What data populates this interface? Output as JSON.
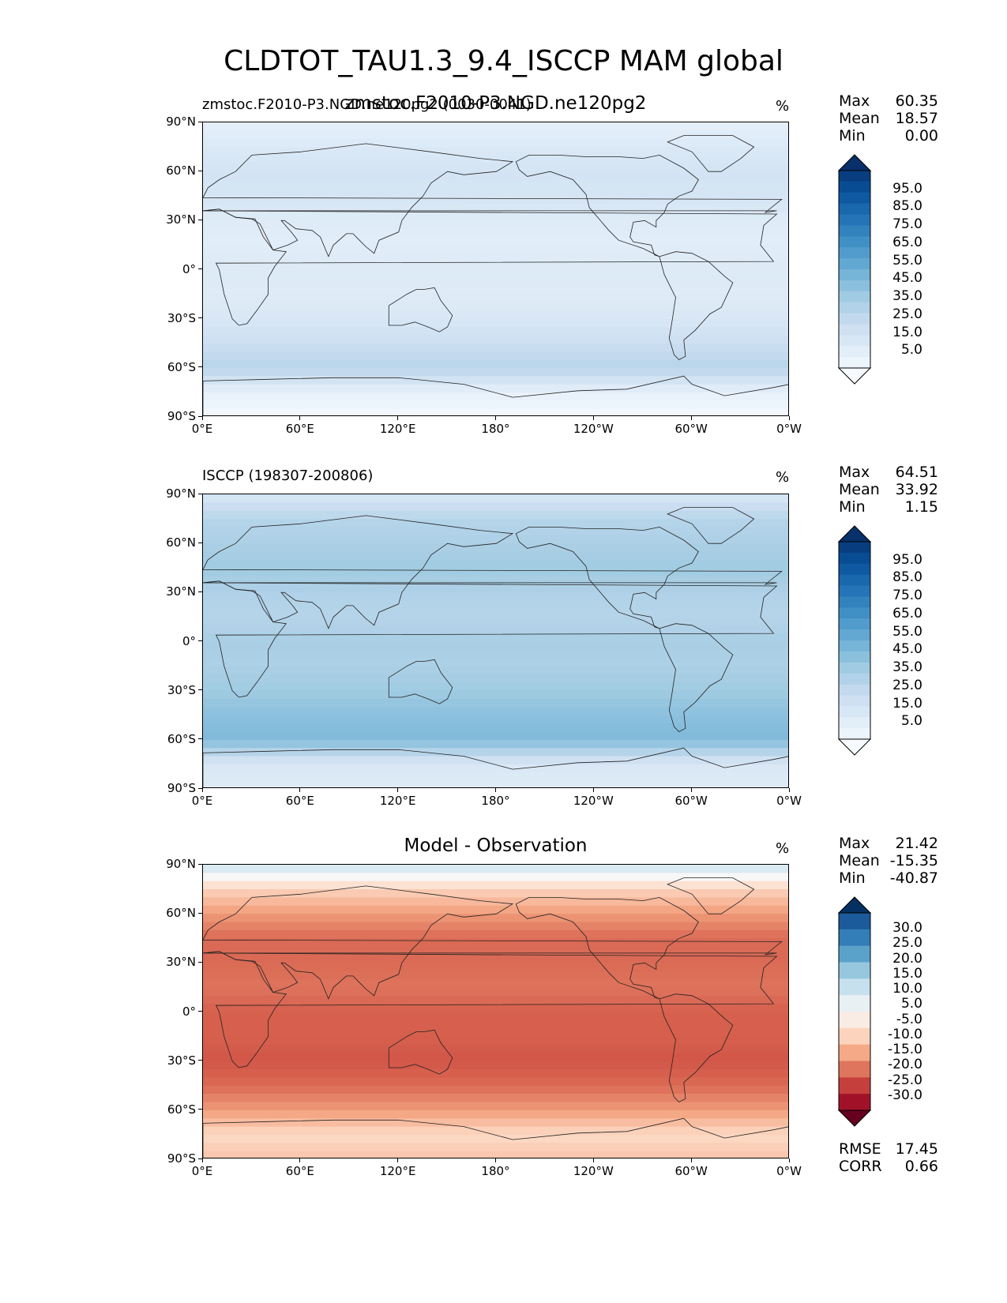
{
  "title": "CLDTOT_TAU1.3_9.4_ISCCP MAM global",
  "x_ticks": [
    "0°E",
    "60°E",
    "120°E",
    "180°",
    "120°W",
    "60°W",
    "0°W"
  ],
  "y_ticks": [
    "90°N",
    "60°N",
    "30°N",
    "0°",
    "30°S",
    "60°S",
    "90°S"
  ],
  "panels": [
    {
      "left_title": "zmstoc.F2010-P3.NGD.ne120pg2 (0030-0041)",
      "center_title": "zmstoc.F2010-P3.NGD.ne120pg2",
      "units": "%",
      "stats": {
        "max_label": "Max",
        "max": "60.35",
        "mean_label": "Mean",
        "mean": "18.57",
        "min_label": "Min",
        "min": "0.00"
      },
      "colorbar_ticks": [
        "95.0",
        "85.0",
        "75.0",
        "65.0",
        "55.0",
        "45.0",
        "35.0",
        "25.0",
        "15.0",
        "5.0"
      ]
    },
    {
      "left_title": "ISCCP (198307-200806)",
      "center_title": "",
      "units": "%",
      "stats": {
        "max_label": "Max",
        "max": "64.51",
        "mean_label": "Mean",
        "mean": "33.92",
        "min_label": "Min",
        "min": "1.15"
      },
      "colorbar_ticks": [
        "95.0",
        "85.0",
        "75.0",
        "65.0",
        "55.0",
        "45.0",
        "35.0",
        "25.0",
        "15.0",
        "5.0"
      ]
    },
    {
      "left_title": "",
      "center_title": "Model - Observation",
      "units": "%",
      "stats": {
        "max_label": "Max",
        "max": "21.42",
        "mean_label": "Mean",
        "mean": "-15.35",
        "min_label": "Min",
        "min": "-40.87"
      },
      "colorbar_ticks": [
        "30.0",
        "25.0",
        "20.0",
        "15.0",
        "10.0",
        "5.0",
        "-5.0",
        "-10.0",
        "-15.0",
        "-20.0",
        "-25.0",
        "-30.0"
      ],
      "rmse_label": "RMSE",
      "rmse": "17.45",
      "corr_label": "CORR",
      "corr": "0.66"
    }
  ],
  "chart_data": [
    {
      "type": "heatmap",
      "title": "CLDTOT_TAU1.3_9.4_ISCCP MAM global",
      "subtitle": "zmstoc.F2010-P3.NGD.ne120pg2 (0030-0041)",
      "units": "%",
      "xlim": [
        0,
        360
      ],
      "ylim": [
        -90,
        90
      ],
      "colormap": "Blues",
      "levels": [
        0,
        5,
        10,
        15,
        20,
        25,
        30,
        35,
        40,
        45,
        50,
        55,
        60,
        65,
        70,
        75,
        80,
        85,
        90,
        95,
        100
      ],
      "max": 60.35,
      "mean": 18.57,
      "min": 0.0,
      "zonal_pattern_lat": [
        90,
        75,
        60,
        45,
        30,
        15,
        0,
        -15,
        -30,
        -45,
        -60,
        -75,
        -90
      ],
      "zonal_pattern_value": [
        8,
        14,
        18,
        17,
        12,
        11,
        13,
        12,
        15,
        22,
        30,
        8,
        2
      ]
    },
    {
      "type": "heatmap",
      "subtitle": "ISCCP (198307-200806)",
      "units": "%",
      "xlim": [
        0,
        360
      ],
      "ylim": [
        -90,
        90
      ],
      "colormap": "Blues",
      "levels": [
        0,
        5,
        10,
        15,
        20,
        25,
        30,
        35,
        40,
        45,
        50,
        55,
        60,
        65,
        70,
        75,
        80,
        85,
        90,
        95,
        100
      ],
      "max": 64.51,
      "mean": 33.92,
      "min": 1.15,
      "zonal_pattern_lat": [
        90,
        75,
        60,
        45,
        30,
        15,
        0,
        -15,
        -30,
        -45,
        -60,
        -75,
        -90
      ],
      "zonal_pattern_value": [
        15,
        30,
        33,
        37,
        32,
        30,
        34,
        33,
        37,
        42,
        45,
        15,
        12
      ]
    },
    {
      "type": "heatmap",
      "subtitle": "Model - Observation",
      "units": "%",
      "xlim": [
        0,
        360
      ],
      "ylim": [
        -90,
        90
      ],
      "colormap": "RdBu_r",
      "levels": [
        -35,
        -30,
        -25,
        -20,
        -15,
        -10,
        -5,
        5,
        10,
        15,
        20,
        25,
        30,
        35
      ],
      "max": 21.42,
      "mean": -15.35,
      "min": -40.87,
      "rmse": 17.45,
      "corr": 0.66,
      "zonal_pattern_lat": [
        90,
        75,
        60,
        45,
        30,
        15,
        0,
        -15,
        -30,
        -45,
        -60,
        -75,
        -90
      ],
      "zonal_pattern_value": [
        8,
        -8,
        -15,
        -20,
        -20,
        -19,
        -21,
        -21,
        -22,
        -20,
        -15,
        -7,
        -10
      ]
    }
  ]
}
